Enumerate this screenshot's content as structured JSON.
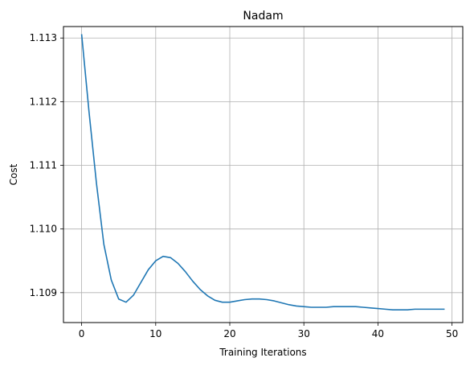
{
  "chart_data": {
    "type": "line",
    "title": "Nadam",
    "xlabel": "Training Iterations",
    "ylabel": "Cost",
    "xlim": [
      -2.45,
      51.45
    ],
    "ylim": [
      1.10853,
      1.11318
    ],
    "grid": true,
    "xticks": [
      0,
      10,
      20,
      30,
      40,
      50
    ],
    "xtick_labels": [
      "0",
      "10",
      "20",
      "30",
      "40",
      "50"
    ],
    "yticks": [
      1.109,
      1.11,
      1.111,
      1.112,
      1.113
    ],
    "ytick_labels": [
      "1.109",
      "1.110",
      "1.111",
      "1.112",
      "1.113"
    ],
    "series": [
      {
        "color": "#1f77b4",
        "x": [
          0,
          1,
          2,
          3,
          4,
          5,
          6,
          7,
          8,
          9,
          10,
          11,
          12,
          13,
          14,
          15,
          16,
          17,
          18,
          19,
          20,
          21,
          22,
          23,
          24,
          25,
          26,
          27,
          28,
          29,
          30,
          31,
          32,
          33,
          34,
          35,
          36,
          37,
          38,
          39,
          40,
          41,
          42,
          43,
          44,
          45,
          46,
          47,
          48,
          49
        ],
        "values": [
          1.11306,
          1.11184,
          1.11072,
          1.10976,
          1.1092,
          1.1089,
          1.10885,
          1.10896,
          1.10916,
          1.10936,
          1.1095,
          1.10957,
          1.10955,
          1.10946,
          1.10933,
          1.10918,
          1.10905,
          1.10895,
          1.10888,
          1.10885,
          1.10885,
          1.10887,
          1.10889,
          1.1089,
          1.1089,
          1.10889,
          1.10887,
          1.10884,
          1.10881,
          1.10879,
          1.10878,
          1.10877,
          1.10877,
          1.10877,
          1.10878,
          1.10878,
          1.10878,
          1.10878,
          1.10877,
          1.10876,
          1.10875,
          1.10874,
          1.10873,
          1.10873,
          1.10873,
          1.10874,
          1.10874,
          1.10874,
          1.10874,
          1.10874
        ]
      }
    ]
  }
}
